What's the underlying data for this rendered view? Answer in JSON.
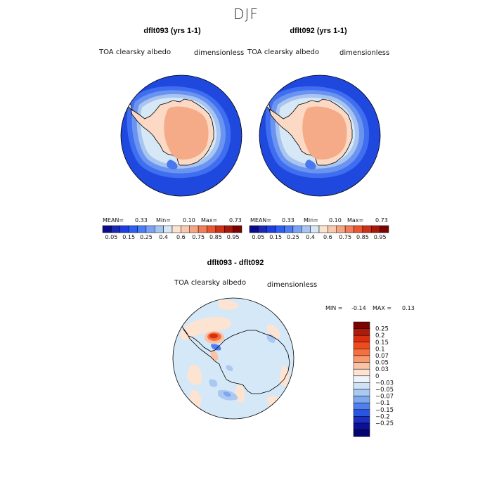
{
  "title": "DJF",
  "panels": [
    {
      "title": "dflt093 (yrs 1-1)",
      "variable": "TOA clearsky albedo",
      "units": "dimensionless",
      "stats": {
        "mean_label": "MEAN=",
        "mean": "0.33",
        "min_label": "Min=",
        "min": "0.10",
        "max_label": "Max=",
        "max": "0.73"
      }
    },
    {
      "title": "dflt092 (yrs 1-1)",
      "variable": "TOA clearsky albedo",
      "units": "dimensionless",
      "stats": {
        "mean_label": "MEAN=",
        "mean": "0.33",
        "min_label": "Min=",
        "min": "0.10",
        "max_label": "Max=",
        "max": "0.73"
      }
    }
  ],
  "colorbar": {
    "colors": [
      "#0a0a8c",
      "#1a28b4",
      "#1f3ee0",
      "#2e5ff5",
      "#4d7df5",
      "#7aa0f2",
      "#a8c4f0",
      "#d6e8f6",
      "#fbe3d2",
      "#f9c8ad",
      "#f5a584",
      "#f27d59",
      "#ea5632",
      "#cf3018",
      "#a81808",
      "#7a0404"
    ],
    "labels": [
      "0.05",
      "0.15",
      "0.25",
      "0.4",
      "0.6",
      "0.75",
      "0.85",
      "0.95"
    ]
  },
  "difference": {
    "title": "dflt093 - dflt092",
    "variable": "TOA clearsky albedo",
    "units": "dimensionless",
    "stats": {
      "min_label": "MIN =",
      "min": "-0.14",
      "max_label": "MAX =",
      "max": "0.13"
    },
    "legend": {
      "colors": [
        "#7a0404",
        "#b01a0a",
        "#d8300e",
        "#f04a20",
        "#f5703f",
        "#f89a70",
        "#fac3a5",
        "#fde3d2",
        "#eef4fb",
        "#cfe2f7",
        "#a9c8f2",
        "#7ea7ee",
        "#4f7ff0",
        "#2a55e0",
        "#1a2ec4",
        "#0c1096",
        "#050570"
      ],
      "labels": [
        "0.25",
        "0.2",
        "0.15",
        "0.1",
        "0.07",
        "0.05",
        "0.03",
        "0",
        "−0.03",
        "−0.05",
        "−0.07",
        "−0.1",
        "−0.15",
        "−0.2",
        "−0.25"
      ]
    }
  },
  "colors": {
    "ocean_deep": "#1f48de",
    "ice_light": "#cfe2f7",
    "ice_mid": "#8fb2ef",
    "land_pale": "#fbd9c4",
    "land_core": "#f5ab88",
    "diff_background": "#d4e8f8"
  }
}
